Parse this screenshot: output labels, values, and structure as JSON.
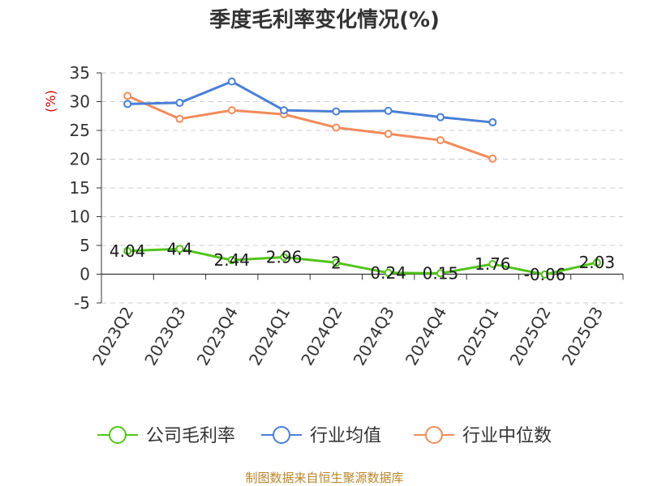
{
  "chart_data": {
    "type": "line",
    "title": "季度毛利率变化情况(%)",
    "ylabel": "(%)",
    "xlabel": "",
    "ylim": [
      -5,
      35
    ],
    "yticks": [
      "35",
      "30",
      "25",
      "20",
      "15",
      "10",
      "5",
      "0",
      "-5"
    ],
    "grid": true,
    "legend_position": "bottom",
    "categories": [
      "2023Q2",
      "2023Q3",
      "2023Q4",
      "2024Q1",
      "2024Q2",
      "2024Q3",
      "2024Q4",
      "2025Q1",
      "2025Q2",
      "2025Q3"
    ],
    "series": [
      {
        "name": "公司毛利率",
        "color": "#52c41a",
        "values": [
          4.04,
          4.4,
          2.44,
          2.96,
          2,
          0.24,
          0.15,
          1.76,
          -0.06,
          2.03
        ],
        "labels": [
          "4.04",
          "4.4",
          "2.44",
          "2.96",
          "2",
          "0.24",
          "0.15",
          "1.76",
          "-0.06",
          "2.03"
        ]
      },
      {
        "name": "行业均值",
        "color": "#4a7fd6",
        "values": [
          29.6,
          29.8,
          33.5,
          28.5,
          28.3,
          28.4,
          27.3,
          26.4,
          null,
          null
        ]
      },
      {
        "name": "行业中位数",
        "color": "#f28b5a",
        "values": [
          31.0,
          27.0,
          28.5,
          27.8,
          25.5,
          24.4,
          23.3,
          20.1,
          null,
          null
        ]
      }
    ],
    "source": "制图数据来自恒生聚源数据库"
  }
}
